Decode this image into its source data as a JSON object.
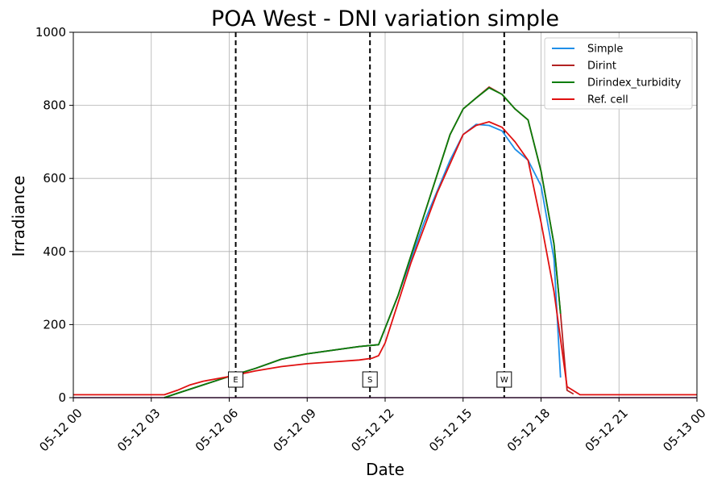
{
  "chart_data": {
    "type": "line",
    "title": "POA West - DNI variation simple",
    "xlabel": "Date",
    "ylabel": "Irradiance",
    "xlim": [
      "2024-05-12 00:00",
      "2024-05-13 00:00"
    ],
    "ylim": [
      0,
      1000
    ],
    "grid": true,
    "legend_position": "top-right",
    "x_tick_labels": [
      "05-12 00",
      "05-12 03",
      "05-12 06",
      "05-12 09",
      "05-12 12",
      "05-12 15",
      "05-12 18",
      "05-12 21",
      "05-13 00"
    ],
    "y_tick_labels": [
      "0",
      "200",
      "400",
      "600",
      "800",
      "1000"
    ],
    "x_ticks": [
      "2024-05-12 00:00",
      "2024-05-12 03:00",
      "2024-05-12 06:00",
      "2024-05-12 09:00",
      "2024-05-12 12:00",
      "2024-05-12 15:00",
      "2024-05-12 18:00",
      "2024-05-12 21:00",
      "2024-05-13 00:00"
    ],
    "y_ticks": [
      0,
      200,
      400,
      600,
      800,
      1000
    ],
    "vertical_markers": [
      {
        "label": "E",
        "x": "2024-05-12 06:15"
      },
      {
        "label": "S",
        "x": "2024-05-12 11:25"
      },
      {
        "label": "W",
        "x": "2024-05-12 16:35"
      }
    ],
    "series": [
      {
        "name": "Simple",
        "color": "#1f8fe8",
        "x": [
          "2024-05-12 03:30",
          "2024-05-12 04:00",
          "2024-05-12 05:00",
          "2024-05-12 06:00",
          "2024-05-12 07:00",
          "2024-05-12 08:00",
          "2024-05-12 09:00",
          "2024-05-12 10:00",
          "2024-05-12 11:00",
          "2024-05-12 11:45",
          "2024-05-12 12:30",
          "2024-05-12 13:30",
          "2024-05-12 14:30",
          "2024-05-12 15:00",
          "2024-05-12 15:30",
          "2024-05-12 16:00",
          "2024-05-12 16:30",
          "2024-05-12 17:00",
          "2024-05-12 17:30",
          "2024-05-12 18:00",
          "2024-05-12 18:30",
          "2024-05-12 18:45"
        ],
        "y": [
          0,
          12,
          35,
          58,
          80,
          105,
          120,
          130,
          140,
          145,
          280,
          480,
          650,
          720,
          748,
          745,
          730,
          680,
          650,
          580,
          380,
          55
        ]
      },
      {
        "name": "Dirint",
        "color": "#b22222",
        "x": [
          "2024-05-12 03:30",
          "2024-05-12 04:00",
          "2024-05-12 05:00",
          "2024-05-12 06:00",
          "2024-05-12 07:00",
          "2024-05-12 08:00",
          "2024-05-12 09:00",
          "2024-05-12 10:00",
          "2024-05-12 11:00",
          "2024-05-12 11:45",
          "2024-05-12 12:30",
          "2024-05-12 13:30",
          "2024-05-12 14:30",
          "2024-05-12 15:00",
          "2024-05-12 15:30",
          "2024-05-12 16:00",
          "2024-05-12 16:30",
          "2024-05-12 17:00",
          "2024-05-12 17:30",
          "2024-05-12 18:00",
          "2024-05-12 18:30",
          "2024-05-12 18:45",
          "2024-05-12 19:00",
          "2024-05-12 19:15"
        ],
        "y": [
          0,
          12,
          35,
          58,
          80,
          105,
          120,
          130,
          140,
          145,
          280,
          500,
          720,
          790,
          820,
          850,
          830,
          790,
          760,
          620,
          420,
          230,
          20,
          10
        ]
      },
      {
        "name": "Dirindex_turbidity",
        "color": "#0a7d0a",
        "x": [
          "2024-05-12 03:30",
          "2024-05-12 04:00",
          "2024-05-12 05:00",
          "2024-05-12 06:00",
          "2024-05-12 07:00",
          "2024-05-12 08:00",
          "2024-05-12 09:00",
          "2024-05-12 10:00",
          "2024-05-12 11:00",
          "2024-05-12 11:45",
          "2024-05-12 12:30",
          "2024-05-12 13:30",
          "2024-05-12 14:30",
          "2024-05-12 15:00",
          "2024-05-12 15:30",
          "2024-05-12 16:00",
          "2024-05-12 16:30",
          "2024-05-12 17:00",
          "2024-05-12 17:30",
          "2024-05-12 18:00",
          "2024-05-12 18:30",
          "2024-05-12 18:45"
        ],
        "y": [
          0,
          12,
          35,
          58,
          80,
          105,
          120,
          130,
          140,
          145,
          280,
          500,
          720,
          790,
          820,
          848,
          830,
          790,
          760,
          620,
          420,
          230
        ]
      },
      {
        "name": "Ref. cell",
        "color": "#e01010",
        "x": [
          "2024-05-12 00:00",
          "2024-05-12 03:30",
          "2024-05-12 04:00",
          "2024-05-12 04:30",
          "2024-05-12 05:00",
          "2024-05-12 06:00",
          "2024-05-12 07:00",
          "2024-05-12 08:00",
          "2024-05-12 09:00",
          "2024-05-12 10:00",
          "2024-05-12 11:00",
          "2024-05-12 11:30",
          "2024-05-12 11:45",
          "2024-05-12 12:00",
          "2024-05-12 13:00",
          "2024-05-12 14:00",
          "2024-05-12 15:00",
          "2024-05-12 15:30",
          "2024-05-12 16:00",
          "2024-05-12 16:30",
          "2024-05-12 17:00",
          "2024-05-12 17:30",
          "2024-05-12 18:00",
          "2024-05-12 18:30",
          "2024-05-12 19:00",
          "2024-05-12 19:30",
          "2024-05-12 24:00"
        ],
        "y": [
          8,
          8,
          20,
          35,
          45,
          58,
          73,
          85,
          93,
          98,
          103,
          108,
          115,
          150,
          370,
          560,
          720,
          745,
          755,
          740,
          700,
          650,
          480,
          290,
          30,
          8,
          8
        ]
      }
    ]
  }
}
